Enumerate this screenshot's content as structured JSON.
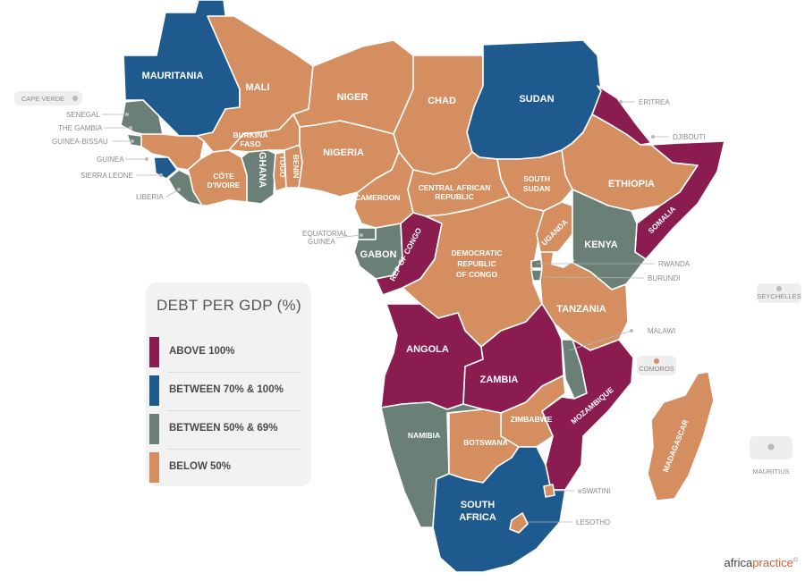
{
  "colors": {
    "above_100": "#8b1c4f",
    "between_70_100": "#1f5a8e",
    "between_50_69": "#6a7f75",
    "below_50": "#d58e60",
    "water": "#ffffff"
  },
  "legend": {
    "title": "DEBT PER GDP (%)",
    "items": [
      {
        "label": "ABOVE 100%",
        "color": "#8b1c4f"
      },
      {
        "label": "BETWEEN 70% & 100%",
        "color": "#1f5a8e"
      },
      {
        "label": "BETWEEN 50% & 69%",
        "color": "#6a7f75"
      },
      {
        "label": "BELOW 50%",
        "color": "#d58e60"
      }
    ]
  },
  "countries": {
    "mauritania": "MAURITANIA",
    "mali": "MALI",
    "niger": "NIGER",
    "chad": "CHAD",
    "sudan": "SUDAN",
    "burkina_faso_1": "BURKINA",
    "burkina_faso_2": "FASO",
    "ghana": "GHANA",
    "togo": "TOGO",
    "benin": "BENIN",
    "nigeria": "NIGERIA",
    "cote_divoire_1": "CÔTE",
    "cote_divoire_2": "D'IVOIRE",
    "cameroon": "CAMEROON",
    "car_1": "CENTRAL AFRICAN",
    "car_2": "REPUBLIC",
    "south_sudan_1": "SOUTH",
    "south_sudan_2": "SUDAN",
    "ethiopia": "ETHIOPIA",
    "somalia": "SOMALIA",
    "kenya": "KENYA",
    "uganda": "UGANDA",
    "gabon": "GABON",
    "rep_congo": "REP OF CONGO",
    "drc_1": "DEMOCRATIC",
    "drc_2": "REPUBLIC",
    "drc_3": "OF CONGO",
    "tanzania": "TANZANIA",
    "angola": "ANGOLA",
    "zambia": "ZAMBIA",
    "mozambique": "MOZAMBIQUE",
    "zimbabwe": "ZIMBABWE",
    "namibia": "NAMIBIA",
    "botswana": "BOTSWANA",
    "south_africa_1": "SOUTH",
    "south_africa_2": "AFRICA",
    "madagascar": "MADAGASCAR"
  },
  "callouts": {
    "cape_verde": "CAPE VERDE",
    "senegal": "SENEGAL",
    "the_gambia": "THE GAMBIA",
    "guinea_bissau": "GUINEA-BISSAU",
    "guinea": "GUINEA",
    "sierra_leone": "SIERRA LEONE",
    "liberia": "LIBERIA",
    "eritrea": "ERITREA",
    "djibouti": "DJIBOUTI",
    "equatorial_guinea_1": "EQUATORIAL",
    "equatorial_guinea_2": "GUINEA",
    "rwanda": "RWANDA",
    "burundi": "BURUNDI",
    "seychelles": "SEYCHELLES",
    "malawi": "MALAWI",
    "comoros": "COMOROS",
    "mauritius": "MAURITIUS",
    "eswatini": "eSWATINI",
    "lesotho": "LESOTHO"
  },
  "brand": {
    "part1": "africa",
    "part2": "practice",
    "mark": "©"
  }
}
